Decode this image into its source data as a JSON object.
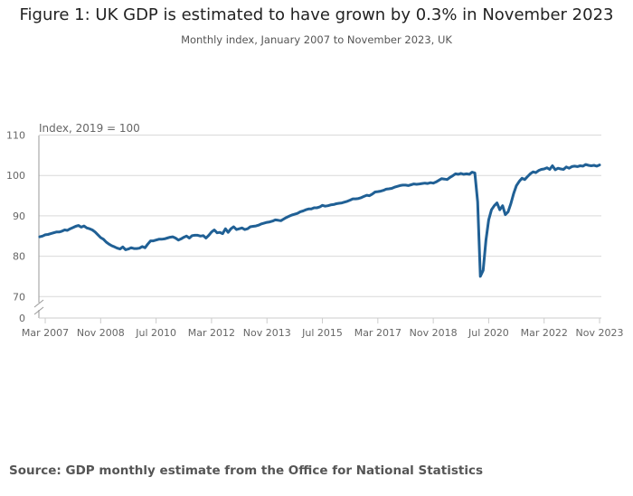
{
  "title": "Figure 1: UK GDP is estimated to have grown by 0.3% in November 2023",
  "subtitle": "Monthly index, January 2007 to November 2023, UK",
  "source": "Source: GDP monthly estimate from the Office for National Statistics",
  "colors": {
    "line": "#206095",
    "grid": "#d9d9d9",
    "axis": "#999999"
  },
  "chart_data": {
    "type": "line",
    "title": "Figure 1: UK GDP is estimated to have grown by 0.3% in November 2023",
    "ylabel": "Index, 2019 = 100",
    "xlabel": "",
    "start": "Jan 2007",
    "end": "Nov 2023",
    "frequency": "monthly",
    "ylim": [
      70,
      110
    ],
    "y_axis_break": "0 to 70",
    "yticks": [
      "110",
      "100",
      "90",
      "80",
      "70",
      "0"
    ],
    "ytick_values": [
      110,
      100,
      90,
      80,
      70
    ],
    "xticks": [
      {
        "label": "Mar 2007",
        "month_index": 2
      },
      {
        "label": "Nov 2008",
        "month_index": 22
      },
      {
        "label": "Jul 2010",
        "month_index": 42
      },
      {
        "label": "Mar 2012",
        "month_index": 62
      },
      {
        "label": "Nov 2013",
        "month_index": 82
      },
      {
        "label": "Jul 2015",
        "month_index": 102
      },
      {
        "label": "Mar 2017",
        "month_index": 122
      },
      {
        "label": "Nov 2018",
        "month_index": 142
      },
      {
        "label": "Jul 2020",
        "month_index": 162
      },
      {
        "label": "Mar 2022",
        "month_index": 182
      },
      {
        "label": "Nov 2023",
        "month_index": 202
      }
    ],
    "grid": true,
    "series": [
      {
        "name": "GDP monthly index",
        "values": [
          84.8,
          85.0,
          85.3,
          85.4,
          85.6,
          85.8,
          86.0,
          86.0,
          86.2,
          86.5,
          86.4,
          86.8,
          87.1,
          87.4,
          87.6,
          87.2,
          87.5,
          87.0,
          86.8,
          86.5,
          86.0,
          85.3,
          84.6,
          84.2,
          83.5,
          83.0,
          82.6,
          82.3,
          82.0,
          81.8,
          82.3,
          81.6,
          81.8,
          82.1,
          81.9,
          81.9,
          82.0,
          82.4,
          82.1,
          83.0,
          83.8,
          83.8,
          84.0,
          84.2,
          84.2,
          84.3,
          84.5,
          84.7,
          84.8,
          84.5,
          84.0,
          84.3,
          84.7,
          85.0,
          84.5,
          85.1,
          85.2,
          85.2,
          85.0,
          85.1,
          84.5,
          85.2,
          86.0,
          86.5,
          85.8,
          85.9,
          85.6,
          86.8,
          85.9,
          86.8,
          87.3,
          86.6,
          86.8,
          87.0,
          86.6,
          86.8,
          87.3,
          87.4,
          87.5,
          87.7,
          88.0,
          88.2,
          88.4,
          88.5,
          88.7,
          89.0,
          88.9,
          88.8,
          89.2,
          89.6,
          89.9,
          90.2,
          90.4,
          90.6,
          91.0,
          91.2,
          91.5,
          91.7,
          91.7,
          92.0,
          92.0,
          92.2,
          92.6,
          92.4,
          92.5,
          92.7,
          92.8,
          93.0,
          93.1,
          93.2,
          93.4,
          93.6,
          93.9,
          94.2,
          94.2,
          94.3,
          94.5,
          94.8,
          95.1,
          95.0,
          95.4,
          95.9,
          96.0,
          96.1,
          96.3,
          96.6,
          96.7,
          96.8,
          97.1,
          97.3,
          97.5,
          97.6,
          97.6,
          97.5,
          97.7,
          97.9,
          97.8,
          97.9,
          98.0,
          98.1,
          98.0,
          98.2,
          98.1,
          98.4,
          98.8,
          99.2,
          99.1,
          99.0,
          99.5,
          99.9,
          100.4,
          100.3,
          100.5,
          100.3,
          100.4,
          100.3,
          100.8,
          100.6,
          93.5,
          75.0,
          76.5,
          84.0,
          89.0,
          91.5,
          92.5,
          93.2,
          91.5,
          92.5,
          90.3,
          91.0,
          93.0,
          95.5,
          97.5,
          98.5,
          99.3,
          99.0,
          99.7,
          100.4,
          100.9,
          100.7,
          101.2,
          101.5,
          101.6,
          101.9,
          101.5,
          102.4,
          101.4,
          101.8,
          101.6,
          101.5,
          102.1,
          101.8,
          102.2,
          102.3,
          102.2,
          102.4,
          102.3,
          102.7,
          102.5,
          102.4,
          102.5,
          102.3,
          102.6
        ]
      }
    ]
  }
}
